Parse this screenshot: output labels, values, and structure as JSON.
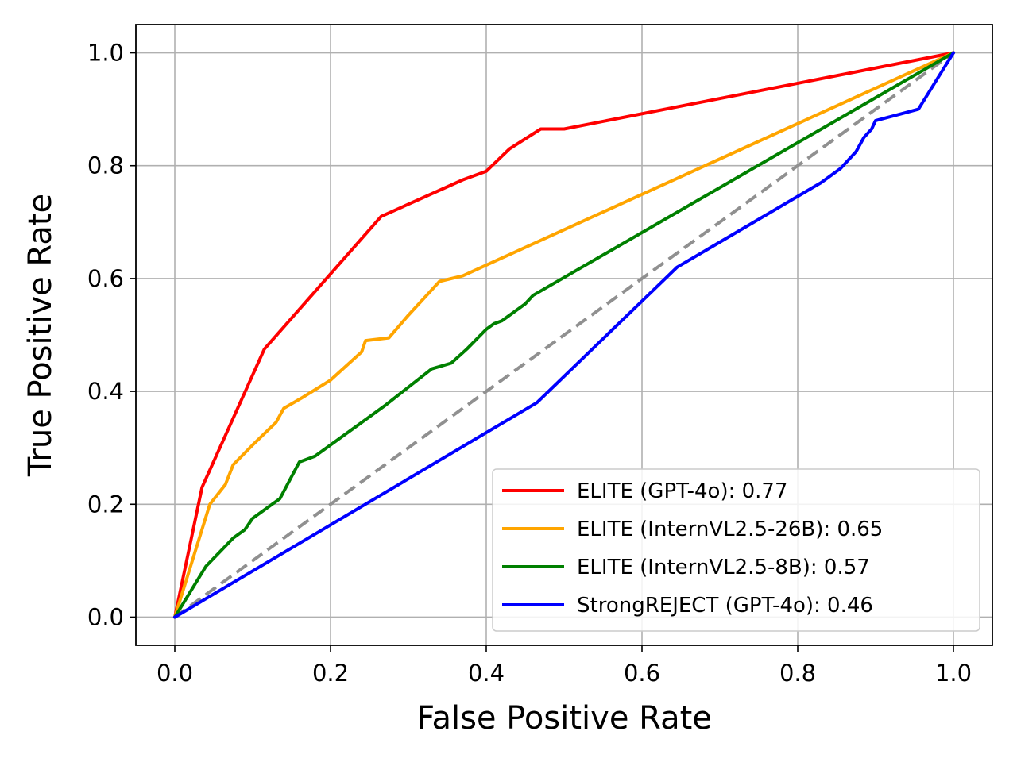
{
  "chart_data": {
    "type": "line",
    "title": "",
    "xlabel": "False Positive Rate",
    "ylabel": "True Positive Rate",
    "xlim": [
      -0.05,
      1.05
    ],
    "ylim": [
      -0.05,
      1.05
    ],
    "xticks": [
      "0.0",
      "0.2",
      "0.4",
      "0.6",
      "0.8",
      "1.0"
    ],
    "yticks": [
      "0.0",
      "0.2",
      "0.4",
      "0.6",
      "0.8",
      "1.0"
    ],
    "grid": true,
    "legend_position": "lower-right",
    "diagonal": {
      "color": "#909090",
      "style": "dashed",
      "points": [
        [
          0,
          0
        ],
        [
          1,
          1
        ]
      ]
    },
    "series": [
      {
        "name": "ELITE (GPT-4o): 0.77",
        "color": "#ff0000",
        "points": [
          [
            0,
            0
          ],
          [
            0.035,
            0.23
          ],
          [
            0.115,
            0.475
          ],
          [
            0.265,
            0.71
          ],
          [
            0.37,
            0.775
          ],
          [
            0.4,
            0.79
          ],
          [
            0.43,
            0.83
          ],
          [
            0.47,
            0.865
          ],
          [
            0.5,
            0.865
          ],
          [
            1.0,
            1.0
          ]
        ]
      },
      {
        "name": "ELITE (InternVL2.5-26B): 0.65",
        "color": "#ffa500",
        "points": [
          [
            0,
            0
          ],
          [
            0.045,
            0.2
          ],
          [
            0.065,
            0.235
          ],
          [
            0.075,
            0.27
          ],
          [
            0.1,
            0.305
          ],
          [
            0.13,
            0.345
          ],
          [
            0.14,
            0.37
          ],
          [
            0.165,
            0.39
          ],
          [
            0.2,
            0.42
          ],
          [
            0.24,
            0.47
          ],
          [
            0.245,
            0.49
          ],
          [
            0.275,
            0.495
          ],
          [
            0.3,
            0.535
          ],
          [
            0.34,
            0.595
          ],
          [
            0.37,
            0.605
          ],
          [
            1.0,
            1.0
          ]
        ]
      },
      {
        "name": "ELITE (InternVL2.5-8B): 0.57",
        "color": "#008000",
        "points": [
          [
            0,
            0
          ],
          [
            0.04,
            0.09
          ],
          [
            0.075,
            0.14
          ],
          [
            0.09,
            0.155
          ],
          [
            0.1,
            0.175
          ],
          [
            0.135,
            0.21
          ],
          [
            0.16,
            0.275
          ],
          [
            0.18,
            0.285
          ],
          [
            0.24,
            0.345
          ],
          [
            0.27,
            0.375
          ],
          [
            0.33,
            0.44
          ],
          [
            0.355,
            0.45
          ],
          [
            0.375,
            0.475
          ],
          [
            0.4,
            0.51
          ],
          [
            0.41,
            0.52
          ],
          [
            0.42,
            0.525
          ],
          [
            0.45,
            0.555
          ],
          [
            0.46,
            0.57
          ],
          [
            1.0,
            1.0
          ]
        ]
      },
      {
        "name": "StrongREJECT (GPT-4o): 0.46",
        "color": "#0000ff",
        "points": [
          [
            0,
            0
          ],
          [
            0.465,
            0.38
          ],
          [
            0.645,
            0.62
          ],
          [
            0.83,
            0.77
          ],
          [
            0.855,
            0.795
          ],
          [
            0.875,
            0.825
          ],
          [
            0.885,
            0.85
          ],
          [
            0.895,
            0.865
          ],
          [
            0.9,
            0.88
          ],
          [
            0.955,
            0.9
          ],
          [
            1.0,
            1.0
          ]
        ]
      }
    ]
  }
}
